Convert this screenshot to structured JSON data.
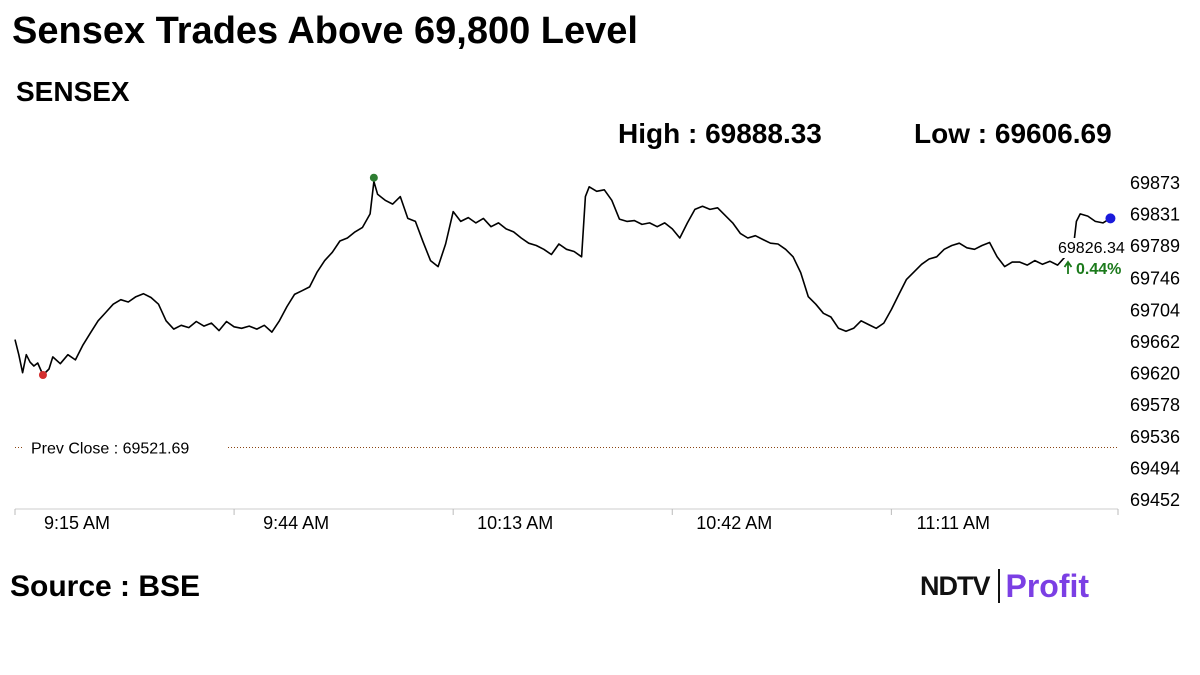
{
  "headline": "Sensex Trades Above 69,800 Level",
  "index_name": "SENSEX",
  "stats": {
    "high": "High : 69888.33",
    "low": "Low : 69606.69"
  },
  "source": "Source : BSE",
  "brand": {
    "left": "NDTV",
    "right": "Profit"
  },
  "colors": {
    "line": "#000000",
    "low_marker": "#d32f2f",
    "high_marker": "#2e7d32",
    "last_marker": "#1a1adb",
    "prev_close": "#8b4513",
    "change_up": "#1b7a1b"
  },
  "chart_data": {
    "type": "line",
    "title": "SENSEX",
    "x_ticks": [
      "9:15 AM",
      "9:44 AM",
      "10:13 AM",
      "10:42 AM",
      "11:11 AM"
    ],
    "y_ticks": [
      69873,
      69831,
      69789,
      69746,
      69704,
      69662,
      69620,
      69578,
      69536,
      69494,
      69452
    ],
    "ylim": [
      69452,
      69873
    ],
    "xlim_minutes_after_open": [
      0,
      146
    ],
    "prev_close": {
      "label": "Prev Close : 69521.69",
      "value": 69521.69
    },
    "last": {
      "price": "69826.34",
      "change": "0.44%",
      "value": 69826.34
    },
    "markers": {
      "low": {
        "t": 3.7,
        "value": 69618
      },
      "high": {
        "t": 47.5,
        "value": 69880
      },
      "last": {
        "t": 145,
        "value": 69826
      }
    },
    "series": [
      {
        "points": [
          [
            0,
            69665
          ],
          [
            0.5,
            69645
          ],
          [
            1,
            69621
          ],
          [
            1.5,
            69645
          ],
          [
            2,
            69635
          ],
          [
            2.5,
            69630
          ],
          [
            3,
            69634
          ],
          [
            3.7,
            69618
          ],
          [
            4.5,
            69626
          ],
          [
            5,
            69642
          ],
          [
            6,
            69633
          ],
          [
            7,
            69645
          ],
          [
            8,
            69638
          ],
          [
            9,
            69658
          ],
          [
            10,
            69674
          ],
          [
            11,
            69690
          ],
          [
            12,
            69701
          ],
          [
            13,
            69712
          ],
          [
            14,
            69718
          ],
          [
            15,
            69715
          ],
          [
            16,
            69722
          ],
          [
            17,
            69726
          ],
          [
            18,
            69721
          ],
          [
            19,
            69712
          ],
          [
            20,
            69690
          ],
          [
            21,
            69679
          ],
          [
            22,
            69684
          ],
          [
            23,
            69681
          ],
          [
            24,
            69689
          ],
          [
            25,
            69683
          ],
          [
            26,
            69687
          ],
          [
            27,
            69677
          ],
          [
            28,
            69689
          ],
          [
            29,
            69682
          ],
          [
            30,
            69680
          ],
          [
            31,
            69683
          ],
          [
            32,
            69679
          ],
          [
            33,
            69684
          ],
          [
            34,
            69675
          ],
          [
            35,
            69690
          ],
          [
            36,
            69709
          ],
          [
            37,
            69725
          ],
          [
            38,
            69730
          ],
          [
            39,
            69735
          ],
          [
            40,
            69755
          ],
          [
            41,
            69770
          ],
          [
            42,
            69781
          ],
          [
            43,
            69796
          ],
          [
            44,
            69800
          ],
          [
            45,
            69808
          ],
          [
            46,
            69814
          ],
          [
            47,
            69832
          ],
          [
            47.5,
            69875
          ],
          [
            48,
            69858
          ],
          [
            49,
            69850
          ],
          [
            50,
            69845
          ],
          [
            51,
            69855
          ],
          [
            52,
            69826
          ],
          [
            53,
            69822
          ],
          [
            54,
            69795
          ],
          [
            55,
            69770
          ],
          [
            56,
            69762
          ],
          [
            57,
            69792
          ],
          [
            58,
            69835
          ],
          [
            59,
            69822
          ],
          [
            60,
            69827
          ],
          [
            61,
            69820
          ],
          [
            62,
            69826
          ],
          [
            63,
            69815
          ],
          [
            64,
            69820
          ],
          [
            65,
            69812
          ],
          [
            66,
            69808
          ],
          [
            67,
            69800
          ],
          [
            68,
            69793
          ],
          [
            69,
            69790
          ],
          [
            70,
            69785
          ],
          [
            71,
            69778
          ],
          [
            72,
            69792
          ],
          [
            73,
            69785
          ],
          [
            74,
            69782
          ],
          [
            75,
            69775
          ],
          [
            75.5,
            69855
          ],
          [
            76,
            69868
          ],
          [
            77,
            69862
          ],
          [
            78,
            69864
          ],
          [
            79,
            69850
          ],
          [
            80,
            69825
          ],
          [
            81,
            69822
          ],
          [
            82,
            69823
          ],
          [
            83,
            69818
          ],
          [
            84,
            69820
          ],
          [
            85,
            69815
          ],
          [
            86,
            69820
          ],
          [
            87,
            69812
          ],
          [
            88,
            69800
          ],
          [
            89,
            69820
          ],
          [
            90,
            69838
          ],
          [
            91,
            69842
          ],
          [
            92,
            69838
          ],
          [
            93,
            69840
          ],
          [
            94,
            69830
          ],
          [
            95,
            69820
          ],
          [
            96,
            69806
          ],
          [
            97,
            69800
          ],
          [
            98,
            69803
          ],
          [
            99,
            69798
          ],
          [
            100,
            69793
          ],
          [
            101,
            69792
          ],
          [
            102,
            69785
          ],
          [
            103,
            69775
          ],
          [
            104,
            69754
          ],
          [
            105,
            69722
          ],
          [
            106,
            69712
          ],
          [
            107,
            69700
          ],
          [
            108,
            69695
          ],
          [
            109,
            69680
          ],
          [
            110,
            69676
          ],
          [
            111,
            69680
          ],
          [
            112,
            69690
          ],
          [
            113,
            69685
          ],
          [
            114,
            69680
          ],
          [
            115,
            69687
          ],
          [
            116,
            69705
          ],
          [
            117,
            69725
          ],
          [
            118,
            69745
          ],
          [
            119,
            69755
          ],
          [
            120,
            69765
          ],
          [
            121,
            69772
          ],
          [
            122,
            69775
          ],
          [
            123,
            69785
          ],
          [
            124,
            69790
          ],
          [
            125,
            69793
          ],
          [
            126,
            69787
          ],
          [
            127,
            69785
          ],
          [
            128,
            69790
          ],
          [
            129,
            69794
          ],
          [
            130,
            69775
          ],
          [
            131,
            69762
          ],
          [
            132,
            69768
          ],
          [
            133,
            69768
          ],
          [
            134,
            69764
          ],
          [
            135,
            69770
          ],
          [
            136,
            69765
          ],
          [
            137,
            69769
          ],
          [
            138,
            69764
          ],
          [
            139,
            69775
          ],
          [
            140,
            69780
          ],
          [
            140.5,
            69822
          ],
          [
            141,
            69832
          ],
          [
            142,
            69829
          ],
          [
            143,
            69822
          ],
          [
            144,
            69820
          ],
          [
            145,
            69826
          ]
        ]
      }
    ]
  }
}
